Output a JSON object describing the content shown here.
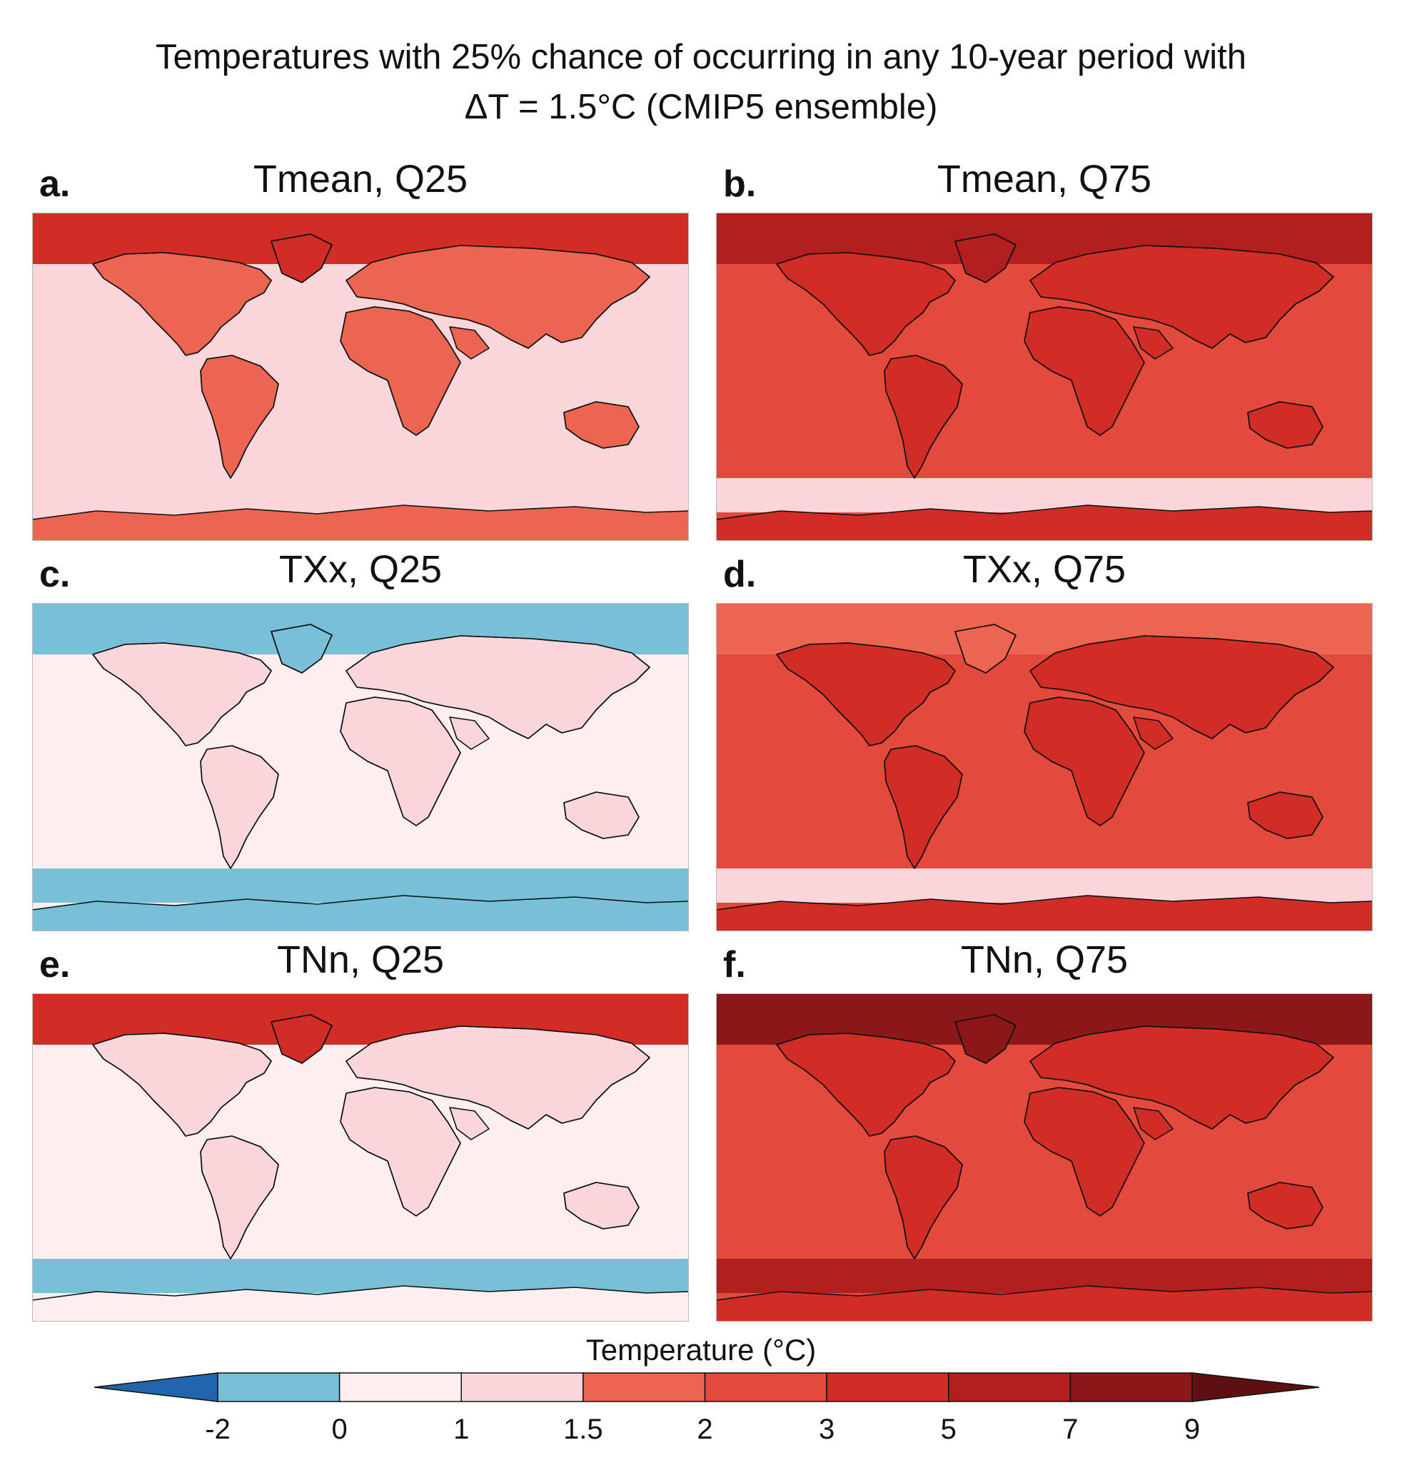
{
  "chart_data": {
    "type": "heatmap",
    "title_line1": "Temperatures with 25% chance of occurring in any 10-year period with",
    "title_line2": "ΔT = 1.5°C (CMIP5 ensemble)",
    "panels": [
      {
        "letter": "a.",
        "title": "Tmean, Q25",
        "base": "1-1.5",
        "arctic": "3-5",
        "continents": "1.5-2",
        "southern_ocean": "1-1.5",
        "antarctica": "1.5-2"
      },
      {
        "letter": "b.",
        "title": "Tmean, Q75",
        "base": "2-3",
        "arctic": "5-7",
        "continents": "3-5",
        "southern_ocean": "1-1.5",
        "antarctica": "3-5"
      },
      {
        "letter": "c.",
        "title": "TXx, Q25",
        "base": "0-1",
        "arctic": "-2-0",
        "continents": "1-1.5",
        "southern_ocean": "-2-0",
        "antarctica": "-2-0"
      },
      {
        "letter": "d.",
        "title": "TXx, Q75",
        "base": "2-3",
        "arctic": "1.5-2",
        "continents": "3-5",
        "southern_ocean": "1-1.5",
        "antarctica": "3-5"
      },
      {
        "letter": "e.",
        "title": "TNn, Q25",
        "base": "0-1",
        "arctic": "3-5",
        "continents": "1-1.5",
        "southern_ocean": "-2-0",
        "antarctica": "0-1"
      },
      {
        "letter": "f.",
        "title": "TNn, Q75",
        "base": "2-3",
        "arctic": "7-9",
        "continents": "3-5",
        "southern_ocean": "5-7",
        "antarctica": "3-5"
      }
    ],
    "colorbar": {
      "label": "Temperature (°C)",
      "ticks": [
        "-2",
        "0",
        "1",
        "1.5",
        "2",
        "3",
        "5",
        "7",
        "9"
      ],
      "bins": [
        {
          "range": "< -2",
          "color": "#2166ac"
        },
        {
          "range": "-2-0",
          "color": "#78c0d8"
        },
        {
          "range": "0-1",
          "color": "#fdeef0"
        },
        {
          "range": "1-1.5",
          "color": "#f9d6da"
        },
        {
          "range": "1.5-2",
          "color": "#ec6550"
        },
        {
          "range": "2-3",
          "color": "#e34a3c"
        },
        {
          "range": "3-5",
          "color": "#d22c27"
        },
        {
          "range": "5-7",
          "color": "#b21f1f"
        },
        {
          "range": "7-9",
          "color": "#8a1818"
        },
        {
          "range": "> 9",
          "color": "#5e1010"
        }
      ]
    }
  }
}
